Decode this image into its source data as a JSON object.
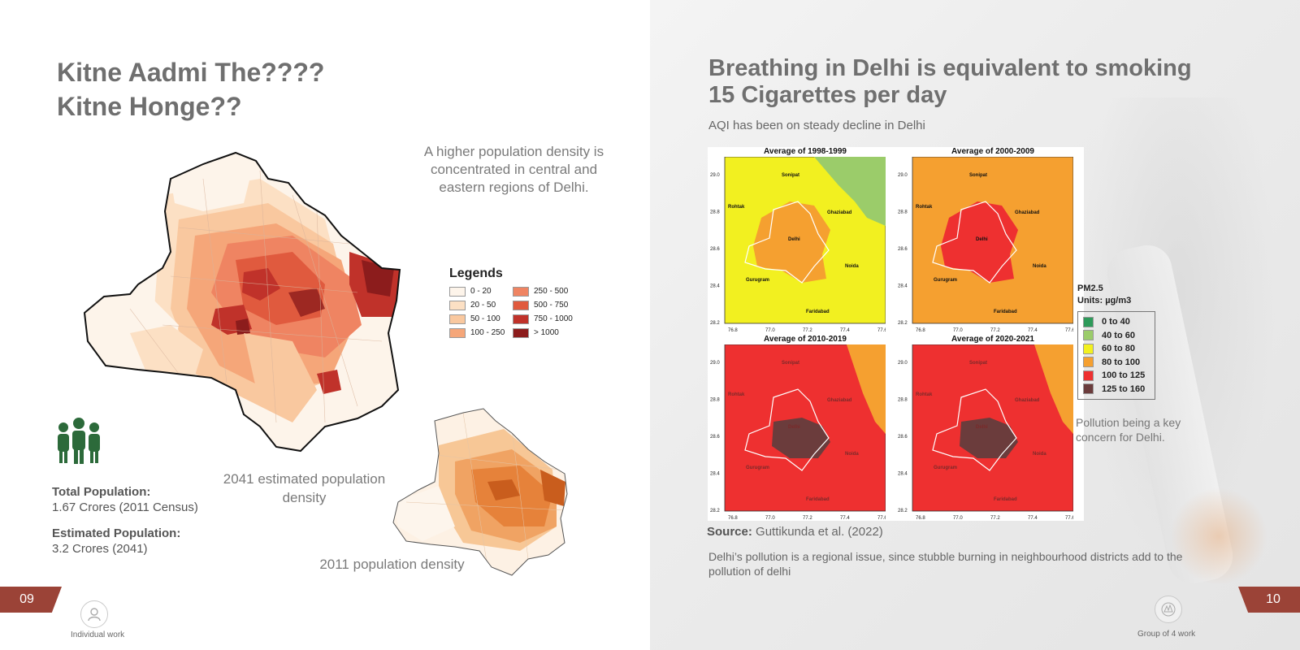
{
  "left": {
    "title_line1": "Kitne Aadmi The????",
    "title_line2": "Kitne Honge??",
    "description": "A higher population density is concentrated in central and eastern regions of Delhi.",
    "legend": {
      "title": "Legends",
      "items": [
        {
          "label": "0 - 20",
          "color": "#fdf4ea"
        },
        {
          "label": "250 - 500",
          "color": "#ef8462"
        },
        {
          "label": "20 - 50",
          "color": "#fce0c4"
        },
        {
          "label": "500 - 750",
          "color": "#e05a3e"
        },
        {
          "label": "50 - 100",
          "color": "#f9c89f"
        },
        {
          "label": "750 - 1000",
          "color": "#c0322a"
        },
        {
          "label": "100 - 250",
          "color": "#f5a679"
        },
        {
          "label": "> 1000",
          "color": "#8c1c1c"
        }
      ]
    },
    "total_population_label": "Total Population:",
    "total_population_value": "1.67 Crores (2011 Census)",
    "estimated_population_label": "Estimated Population:",
    "estimated_population_value": "3.2 Crores (2041)",
    "caption_2041": "2041 estimated population density",
    "caption_2011": "2011 population density",
    "page_number": "09",
    "footer_label": "Individual work",
    "icons": {
      "people": "people-group-icon",
      "user": "user-icon"
    }
  },
  "right": {
    "title_line1": "Breathing in Delhi is equivalent to smoking",
    "title_line2": "15 Cigarettes per day",
    "subtitle": "AQI has been on steady decline in Delhi",
    "maps": [
      {
        "title": "Average of 1998-1999"
      },
      {
        "title": "Average of 2000-2009"
      },
      {
        "title": "Average of 2010-2019"
      },
      {
        "title": "Average of 2020-2021"
      }
    ],
    "map_labels": {
      "sonipat": "Sonipat",
      "rohtak": "Rohtak",
      "ghaziabad": "Ghaziabad",
      "delhi": "Delhi",
      "noida": "Noida",
      "gurugram": "Gurugram",
      "faridabad": "Faridabad"
    },
    "y_ticks": [
      "29.0",
      "28.8",
      "28.6",
      "28.4",
      "28.2"
    ],
    "x_ticks": [
      "76.8",
      "77.0",
      "77.2",
      "77.4",
      "77.6"
    ],
    "pm_legend": {
      "title_line1": "PM2.5",
      "title_line2": "Units: µg/m3",
      "items": [
        {
          "label": "0  to  40",
          "color": "#2e9a5a"
        },
        {
          "label": "40  to  60",
          "color": "#9bcc6a"
        },
        {
          "label": "60  to  80",
          "color": "#f2f020"
        },
        {
          "label": "80  to  100",
          "color": "#f5a030"
        },
        {
          "label": "100  to  125",
          "color": "#ee3030"
        },
        {
          "label": "125  to  160",
          "color": "#6b3c3c"
        }
      ]
    },
    "note": "Pollution being a key concern for Delhi.",
    "source_label": "Source:",
    "source_value": "Guttikunda et al. (2022)",
    "paragraph": "Delhi’s pollution is a regional issue, since stubble burning in neighbourhood districts add to the pollution of delhi",
    "page_number": "10",
    "footer_label": "Group of 4 work",
    "icons": {
      "group": "group-emblem-icon"
    }
  }
}
